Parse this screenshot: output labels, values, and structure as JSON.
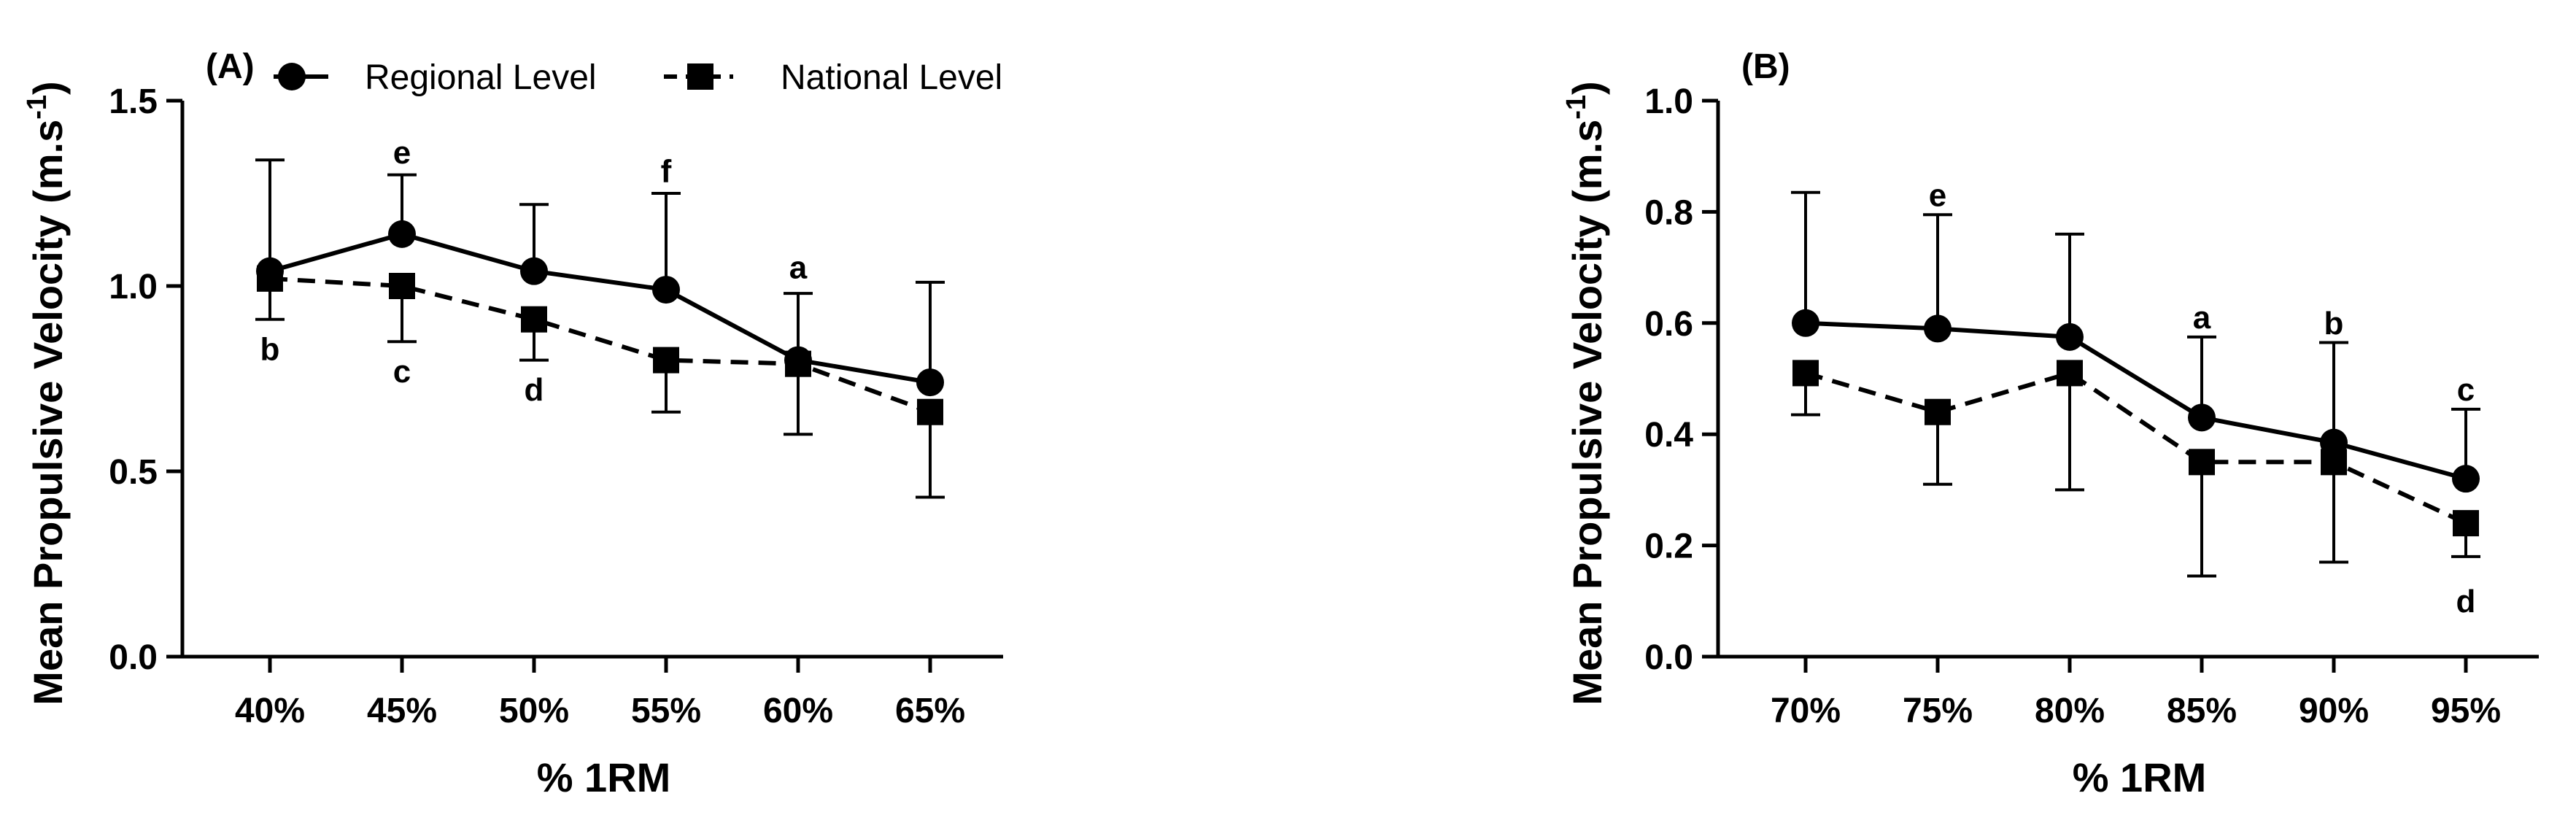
{
  "chart_data": [
    {
      "type": "line",
      "panel_label": "(A)",
      "categories": [
        "40%",
        "45%",
        "50%",
        "55%",
        "60%",
        "65%"
      ],
      "xlabel": "% 1RM",
      "ylabel": "Mean Propulsive Velocity (m.s",
      "ylabel_superscript": "-1",
      "ylabel_close": ")",
      "ylim": [
        0,
        1.5
      ],
      "yticks": [
        "0.0",
        "0.5",
        "1.0",
        "1.5"
      ],
      "legend_position": "top",
      "series": [
        {
          "name": "Regional Level",
          "marker": "circle",
          "line_style": "solid",
          "values": [
            1.04,
            1.14,
            1.04,
            0.99,
            0.8,
            0.74
          ],
          "error": [
            0.3,
            0.16,
            0.18,
            0.26,
            0.18,
            0.27
          ],
          "error_direction": "up"
        },
        {
          "name": "National Level",
          "marker": "square",
          "line_style": "dashed",
          "values": [
            1.02,
            1.0,
            0.91,
            0.8,
            0.79,
            0.66
          ],
          "error": [
            0.11,
            0.15,
            0.11,
            0.14,
            0.19,
            0.23
          ],
          "error_direction": "down"
        }
      ],
      "annotations": [
        {
          "text": "b",
          "category": "40%",
          "value": 0.83
        },
        {
          "text": "e",
          "category": "45%",
          "value": 1.36
        },
        {
          "text": "c",
          "category": "45%",
          "value": 0.77
        },
        {
          "text": "d",
          "category": "50%",
          "value": 0.72
        },
        {
          "text": "f",
          "category": "55%",
          "value": 1.31
        },
        {
          "text": "a",
          "category": "60%",
          "value": 1.05
        }
      ]
    },
    {
      "type": "line",
      "panel_label": "(B)",
      "categories": [
        "70%",
        "75%",
        "80%",
        "85%",
        "90%",
        "95%"
      ],
      "xlabel": "% 1RM",
      "ylabel": "Mean Propulsive Velocity (m.s",
      "ylabel_superscript": "-1",
      "ylabel_close": ")",
      "ylim": [
        0,
        1.0
      ],
      "yticks": [
        "0.0",
        "0.2",
        "0.4",
        "0.6",
        "0.8",
        "1.0"
      ],
      "series": [
        {
          "name": "Regional Level",
          "marker": "circle",
          "line_style": "solid",
          "values": [
            0.6,
            0.59,
            0.575,
            0.43,
            0.385,
            0.32
          ],
          "error": [
            0.235,
            0.205,
            0.185,
            0.145,
            0.18,
            0.125
          ],
          "error_direction": "up"
        },
        {
          "name": "National Level",
          "marker": "square",
          "line_style": "dashed",
          "values": [
            0.51,
            0.44,
            0.51,
            0.35,
            0.35,
            0.24
          ],
          "error": [
            0.075,
            0.13,
            0.21,
            0.205,
            0.18,
            0.06
          ],
          "error_direction": "down"
        }
      ],
      "annotations": [
        {
          "text": "e",
          "category": "75%",
          "value": 0.83
        },
        {
          "text": "a",
          "category": "85%",
          "value": 0.61
        },
        {
          "text": "b",
          "category": "90%",
          "value": 0.6
        },
        {
          "text": "c",
          "category": "95%",
          "value": 0.48
        },
        {
          "text": "d",
          "category": "95%",
          "value": 0.1
        }
      ]
    }
  ]
}
